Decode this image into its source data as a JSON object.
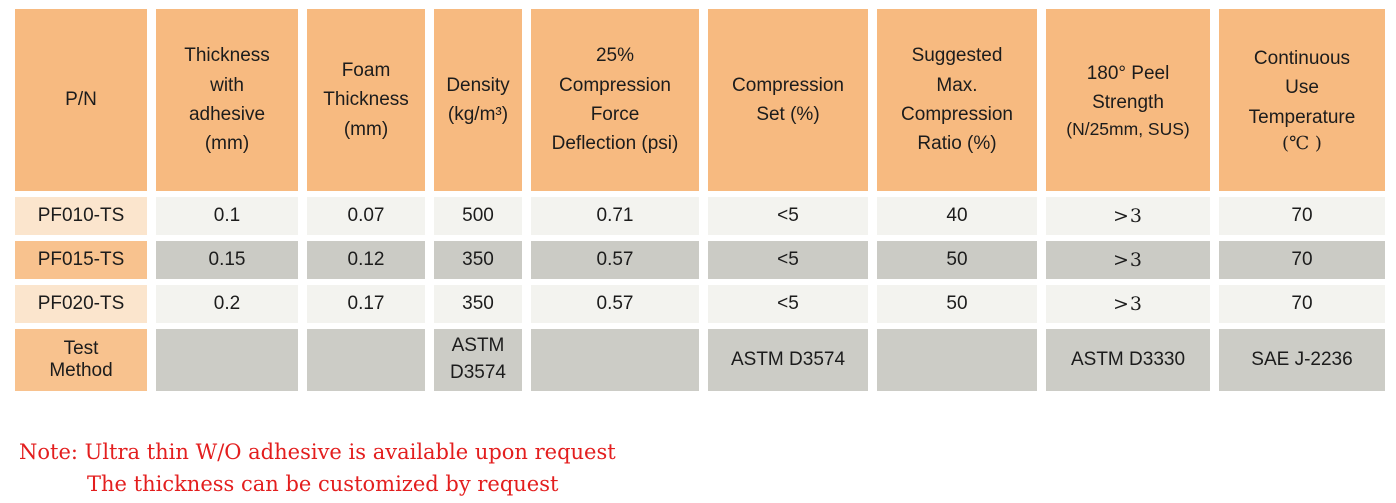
{
  "table": {
    "headers": [
      {
        "label": "P/N"
      },
      {
        "label": "Thickness\nwith\nadhesive\n(mm)"
      },
      {
        "label": "Foam\nThickness\n(mm)"
      },
      {
        "label": "Density\n(kg/m³)"
      },
      {
        "label": "25%\nCompression\nForce\nDeflection (psi)"
      },
      {
        "label": "Compression\nSet (%)"
      },
      {
        "label": "Suggested\nMax.\nCompression\nRatio (%)"
      },
      {
        "label": "180° Peel\nStrength",
        "sub": "(N/25mm, SUS)"
      },
      {
        "label": "Continuous\nUse\nTemperature",
        "sub": "(℃ )"
      }
    ],
    "rows": [
      {
        "pn": "PF010-TS",
        "values": [
          "0.1",
          "0.07",
          "500",
          "0.71",
          "<5",
          "40",
          ">3",
          "70"
        ]
      },
      {
        "pn": "PF015-TS",
        "values": [
          "0.15",
          "0.12",
          "350",
          "0.57",
          "<5",
          "50",
          ">3",
          "70"
        ]
      },
      {
        "pn": "PF020-TS",
        "values": [
          "0.2",
          "0.17",
          "350",
          "0.57",
          "<5",
          "50",
          ">3",
          "70"
        ]
      }
    ],
    "test_method": {
      "label": "Test\nMethod",
      "values": [
        "",
        "",
        "ASTM\nD3574",
        "",
        "ASTM D3574",
        "",
        "ASTM D3330",
        "SAE J-2236"
      ]
    }
  },
  "note": {
    "line1": "Note: Ultra thin W/O adhesive is available upon request",
    "line2": "The thickness can be customized by request"
  },
  "colors": {
    "header_orange": "#f7ba80",
    "pn_light_orange": "#fbe5cd",
    "pn_mid_orange": "#f8c28e",
    "row_light": "#f3f3ef",
    "row_dark": "#cbcbc5",
    "test_gray": "#ccccc6",
    "note_red": "#e31e1e",
    "text": "#1c1c1c"
  }
}
